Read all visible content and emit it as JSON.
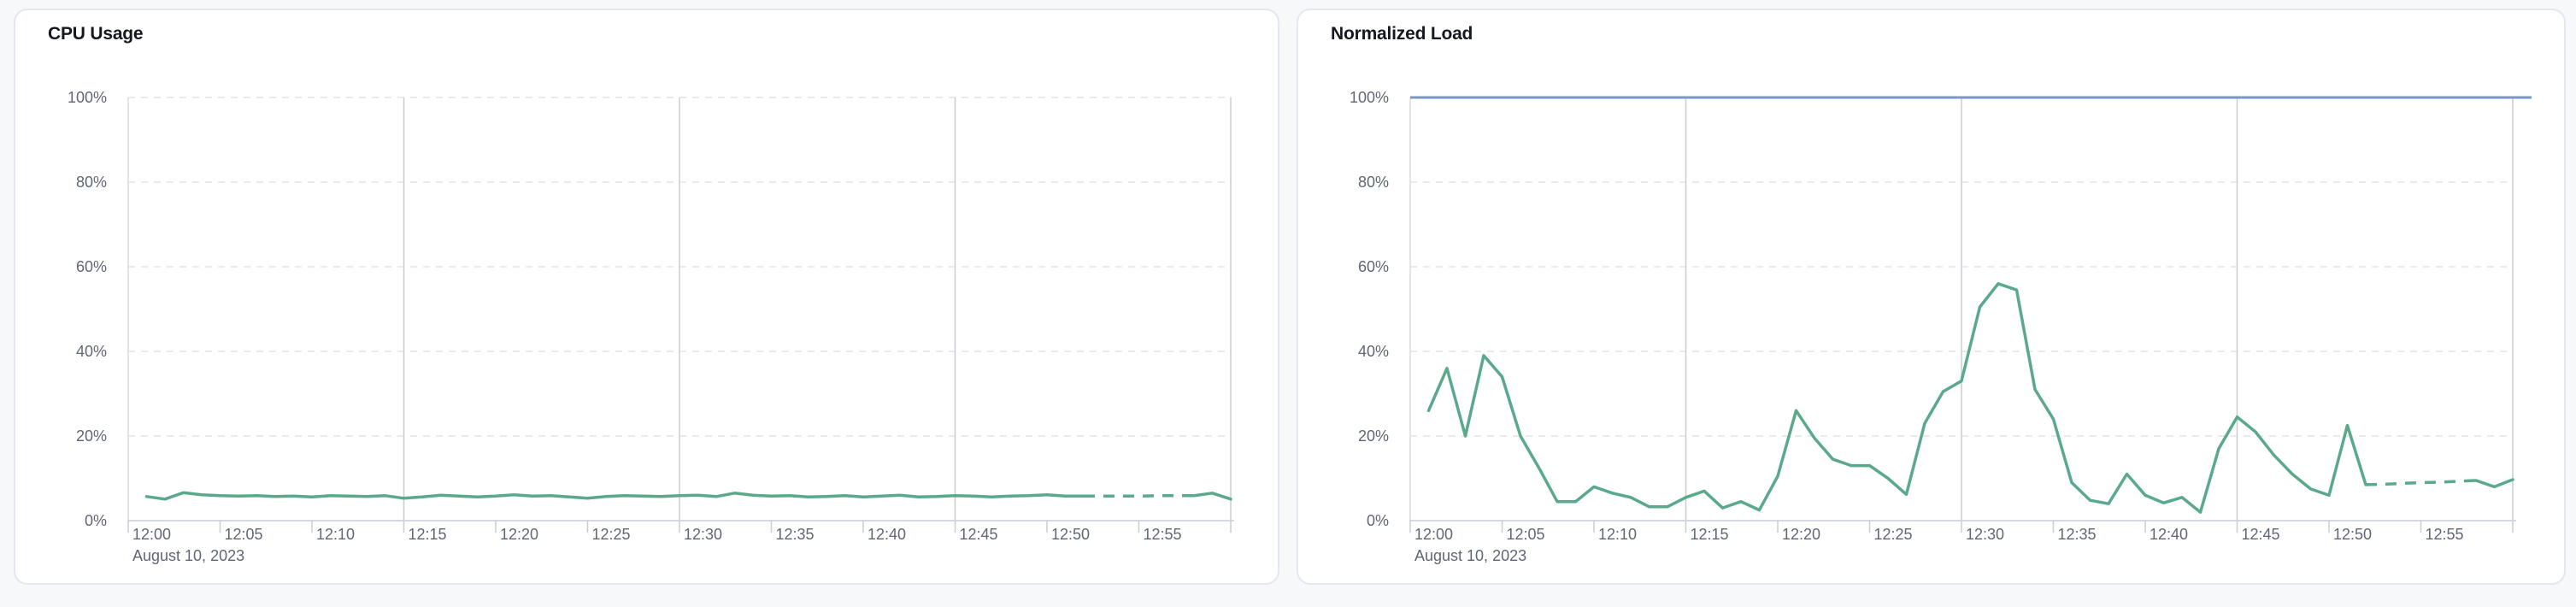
{
  "page": {
    "background": "#f7f8fa"
  },
  "panels": [
    {
      "title": "CPU Usage",
      "date_label": "August 10, 2023"
    },
    {
      "title": "Normalized Load",
      "date_label": "August 10, 2023"
    }
  ],
  "colors": {
    "series_green": "#5aa98b",
    "limit_blue": "#7a96c2",
    "grid_dashed": "#e1e4ea",
    "grid_solid": "#c9cdd3",
    "plot_left_border": "#d9dce2",
    "axis_line": "#d6d9df",
    "tick_mark": "#c9cdd3",
    "label_text": "#5f6775",
    "title_text": "#15191f",
    "panel_border": "#e3e7f0",
    "panel_bg": "#ffffff"
  },
  "chart_data": [
    {
      "type": "line",
      "title": "CPU Usage",
      "xlabel": "August 10, 2023",
      "ylabel": "",
      "ylim": [
        0,
        100
      ],
      "y_tick_labels": [
        "100%",
        "80%",
        "60%",
        "40%",
        "20%",
        "0%"
      ],
      "x_tick_labels": [
        "12:00",
        "12:05",
        "12:10",
        "12:15",
        "12:20",
        "12:25",
        "12:30",
        "12:35",
        "12:40",
        "12:45",
        "12:50",
        "12:55"
      ],
      "x_range": [
        "12:00",
        "13:00"
      ],
      "grid": {
        "horizontal": "dashed at 20,40,60,80,100",
        "vertical_solid_minutes": [
          15,
          30,
          45,
          60
        ]
      },
      "legend": "none",
      "series": [
        {
          "name": "cpu-usage-percent",
          "color": "#5aa98b",
          "start_time": "12:01",
          "interval_minutes": 1,
          "dashed_from": "12:52",
          "dashed_to": "12:58",
          "values": [
            5.7,
            5.1,
            6.6,
            6.1,
            5.9,
            5.8,
            5.9,
            5.7,
            5.8,
            5.6,
            5.9,
            5.8,
            5.7,
            5.9,
            5.3,
            5.6,
            6.0,
            5.8,
            5.6,
            5.8,
            6.1,
            5.8,
            5.9,
            5.6,
            5.3,
            5.7,
            5.9,
            5.8,
            5.7,
            5.9,
            6.0,
            5.7,
            6.5,
            6.0,
            5.8,
            5.9,
            5.6,
            5.7,
            5.9,
            5.6,
            5.8,
            6.0,
            5.6,
            5.7,
            5.9,
            5.8,
            5.6,
            5.8,
            5.9,
            6.1,
            5.8,
            5.8,
            5.8,
            5.8,
            5.8,
            5.9,
            5.9,
            5.9,
            6.5,
            5.1
          ]
        }
      ]
    },
    {
      "type": "line",
      "title": "Normalized Load",
      "xlabel": "August 10, 2023",
      "ylabel": "",
      "ylim": [
        0,
        100
      ],
      "y_tick_labels": [
        "100%",
        "80%",
        "60%",
        "40%",
        "20%",
        "0%"
      ],
      "x_tick_labels": [
        "12:00",
        "12:05",
        "12:10",
        "12:15",
        "12:20",
        "12:25",
        "12:30",
        "12:35",
        "12:40",
        "12:45",
        "12:50",
        "12:55"
      ],
      "x_range": [
        "12:00",
        "13:00"
      ],
      "grid": {
        "horizontal": "dashed at 20,40,60,80",
        "vertical_solid_minutes": [
          15,
          30,
          45,
          60
        ]
      },
      "legend": "none",
      "series": [
        {
          "name": "normalized-load-percent",
          "color": "#5aa98b",
          "start_time": "12:01",
          "interval_minutes": 1,
          "dashed_from": "12:52",
          "dashed_to": "12:58",
          "values": [
            26,
            36,
            20,
            39,
            34,
            20,
            12.5,
            4.5,
            4.5,
            8,
            6.5,
            5.5,
            3.3,
            3.3,
            5.5,
            7,
            3,
            4.5,
            2.5,
            10.5,
            26,
            19.5,
            14.5,
            13,
            13,
            10,
            6.2,
            23,
            30.5,
            33,
            50.5,
            56,
            54.5,
            31,
            24,
            9,
            4.8,
            4,
            11,
            6,
            4.2,
            5.5,
            2,
            17,
            24.5,
            21,
            15.5,
            11,
            7.5,
            6,
            22.5,
            8.5,
            8.6,
            8.8,
            9,
            9.1,
            9.3,
            9.5,
            8,
            9.7
          ]
        },
        {
          "name": "load-limit-line",
          "type": "hline",
          "color": "#7a96c2",
          "value": 100
        }
      ]
    }
  ]
}
